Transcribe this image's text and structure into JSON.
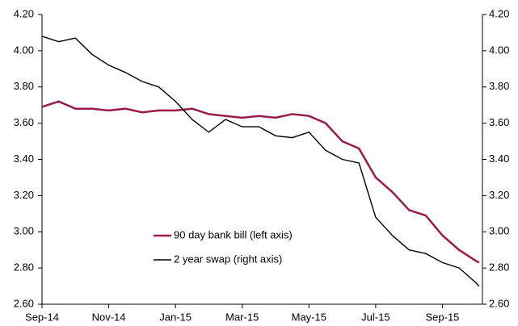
{
  "chart_data": {
    "type": "line",
    "x": [
      0,
      0.5,
      1,
      1.5,
      2,
      2.5,
      3,
      3.5,
      4,
      4.5,
      5,
      5.5,
      6,
      6.5,
      7,
      7.5,
      8,
      8.5,
      9,
      9.5,
      10,
      10.5,
      11,
      11.5,
      12,
      12.5,
      13,
      13.1
    ],
    "xlim": [
      0,
      13.2
    ],
    "xticks": [
      {
        "value": 0,
        "label": "Sep-14"
      },
      {
        "value": 2,
        "label": "Nov-14"
      },
      {
        "value": 4,
        "label": "Jan-15"
      },
      {
        "value": 6,
        "label": "Mar-15"
      },
      {
        "value": 8,
        "label": "May-15"
      },
      {
        "value": 10,
        "label": "Jul-15"
      },
      {
        "value": 12,
        "label": "Sep-15"
      }
    ],
    "ylim": [
      2.6,
      4.2
    ],
    "yticks": [
      {
        "value": 2.6,
        "label": "2.60"
      },
      {
        "value": 2.8,
        "label": "2.80"
      },
      {
        "value": 3.0,
        "label": "3.00"
      },
      {
        "value": 3.2,
        "label": "3.20"
      },
      {
        "value": 3.4,
        "label": "3.40"
      },
      {
        "value": 3.6,
        "label": "3.60"
      },
      {
        "value": 3.8,
        "label": "3.80"
      },
      {
        "value": 4.0,
        "label": "4.00"
      },
      {
        "value": 4.2,
        "label": "4.20"
      }
    ],
    "y2lim": [
      2.6,
      4.2
    ],
    "y2ticks": [
      {
        "value": 2.6,
        "label": "2.60"
      },
      {
        "value": 2.8,
        "label": "2.80"
      },
      {
        "value": 3.0,
        "label": "3.00"
      },
      {
        "value": 3.2,
        "label": "3.20"
      },
      {
        "value": 3.4,
        "label": "3.40"
      },
      {
        "value": 3.6,
        "label": "3.60"
      },
      {
        "value": 3.8,
        "label": "3.80"
      },
      {
        "value": 4.0,
        "label": "4.00"
      },
      {
        "value": 4.2,
        "label": "4.20"
      }
    ],
    "series": [
      {
        "name": "90 day bank bill (left axis)",
        "color": "#9b1b4a",
        "axis": "y",
        "values": [
          3.69,
          3.72,
          3.68,
          3.68,
          3.67,
          3.68,
          3.66,
          3.67,
          3.67,
          3.68,
          3.65,
          3.64,
          3.63,
          3.64,
          3.63,
          3.65,
          3.64,
          3.6,
          3.5,
          3.46,
          3.3,
          3.22,
          3.12,
          3.09,
          2.98,
          2.9,
          2.84,
          2.83
        ]
      },
      {
        "name": "2 year swap (right axis)",
        "color": "#000000",
        "axis": "y2",
        "values": [
          4.08,
          4.05,
          4.07,
          3.98,
          3.92,
          3.88,
          3.83,
          3.8,
          3.72,
          3.62,
          3.55,
          3.62,
          3.58,
          3.58,
          3.53,
          3.52,
          3.55,
          3.45,
          3.4,
          3.38,
          3.08,
          2.98,
          2.9,
          2.88,
          2.83,
          2.8,
          2.72,
          2.7
        ]
      }
    ]
  }
}
